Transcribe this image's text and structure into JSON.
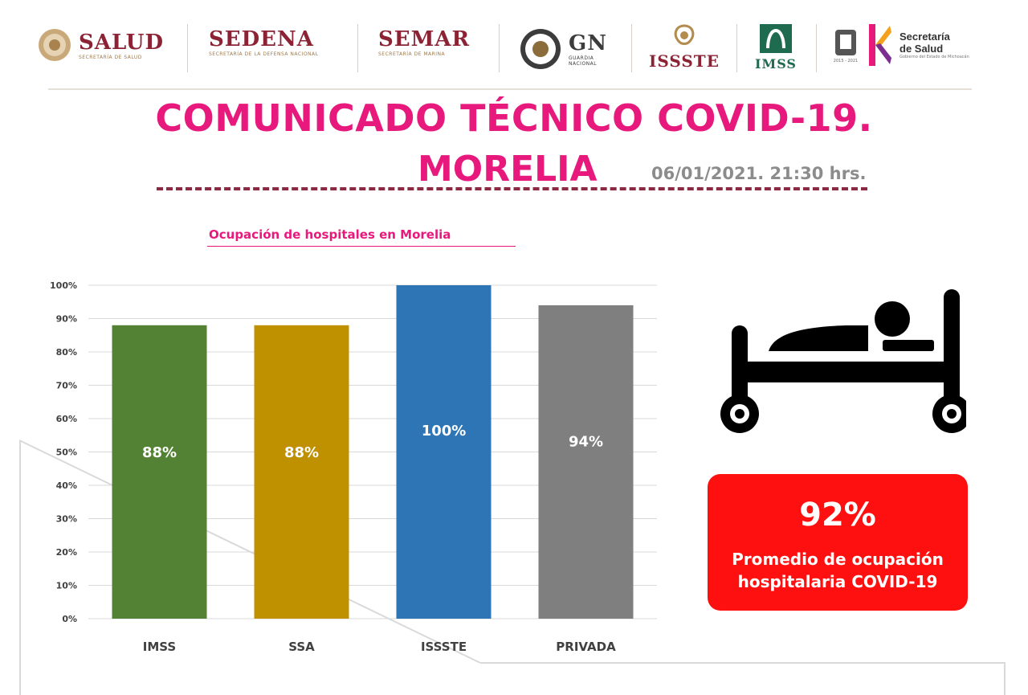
{
  "logos": {
    "salud": {
      "title": "SALUD",
      "sub": "SECRETARÍA DE SALUD"
    },
    "sedena": {
      "title": "SEDENA",
      "sub": "SECRETARÍA DE LA DEFENSA NACIONAL"
    },
    "semar": {
      "title": "SEMAR",
      "sub": "SECRETARÍA DE MARINA"
    },
    "gn": {
      "title": "GN",
      "sub1": "GUARDIA",
      "sub2": "NACIONAL"
    },
    "issste": {
      "title": "ISSSTE"
    },
    "imss": {
      "title": "IMSS"
    },
    "michoacan": {
      "title1": "Secretaría",
      "title2": "de Salud",
      "sub": "Gobierno del Estado de Michoacán",
      "years": "2015 - 2021"
    }
  },
  "header": {
    "title_line1": "COMUNICADO TÉCNICO COVID-19.",
    "title_line2": "MORELIA",
    "date": "06/01/2021.  21:30 hrs."
  },
  "chart_data": {
    "type": "bar",
    "title": "Ocupación de hospitales en Morelia",
    "categories": [
      "IMSS",
      "SSA",
      "ISSSTE",
      "PRIVADA"
    ],
    "values": [
      88,
      88,
      100,
      94
    ],
    "data_labels": [
      "88%",
      "88%",
      "100%",
      "94%"
    ],
    "colors": [
      "#548235",
      "#bf9000",
      "#2e75b6",
      "#7f7f7f"
    ],
    "ylim": [
      0,
      100
    ],
    "y_ticks": [
      0,
      10,
      20,
      30,
      40,
      50,
      60,
      70,
      80,
      90,
      100
    ],
    "y_tick_labels": [
      "0%",
      "10%",
      "20%",
      "30%",
      "40%",
      "50%",
      "60%",
      "70%",
      "80%",
      "90%",
      "100%"
    ],
    "grid": true,
    "xlabel": "",
    "ylabel": ""
  },
  "summary": {
    "icon": "hospital-bed-icon",
    "value": "92%",
    "label_line1": "Promedio de ocupación",
    "label_line2": "hospitalaria COVID-19",
    "box_color": "#ff1010"
  }
}
